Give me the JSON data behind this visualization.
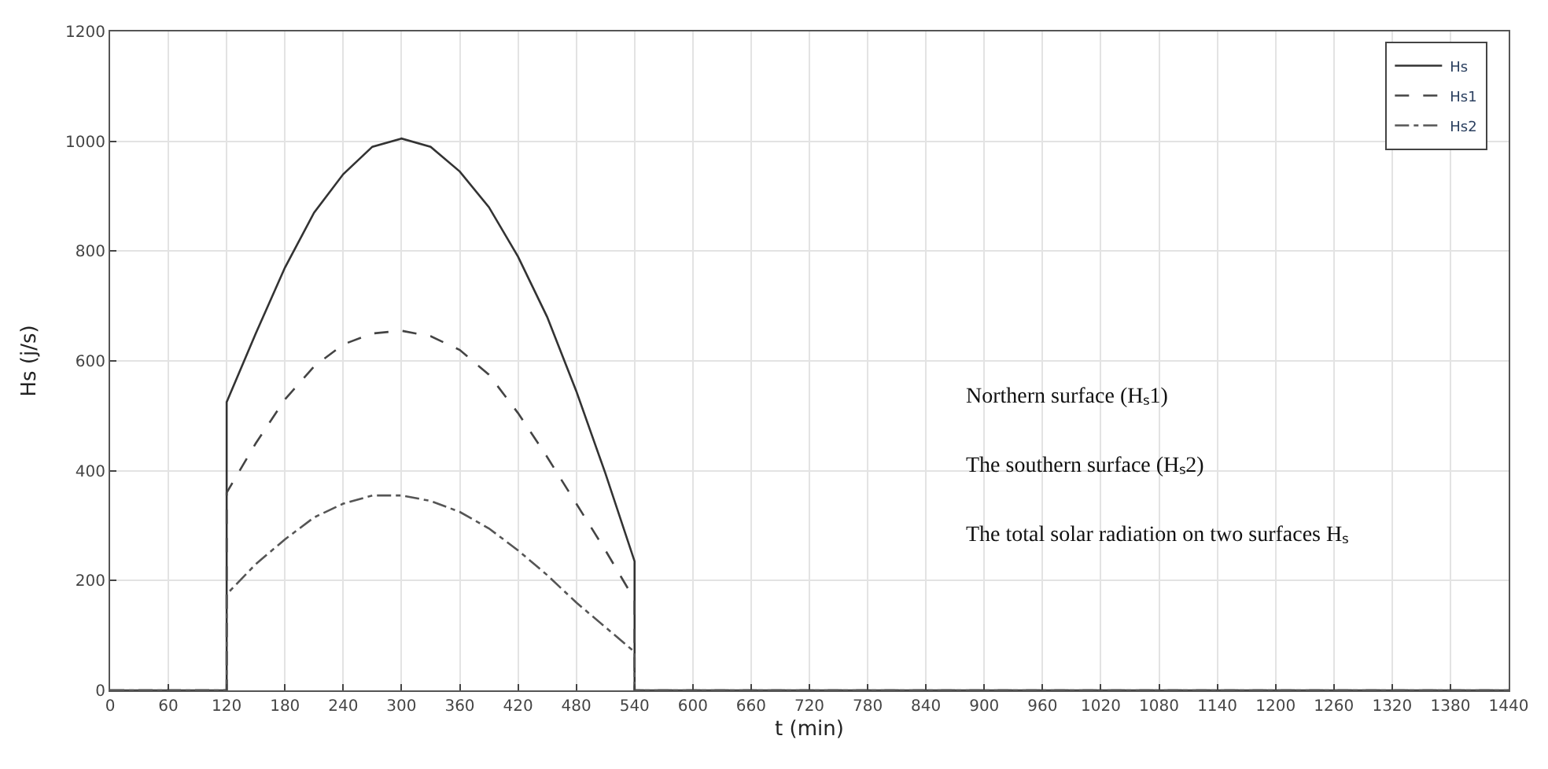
{
  "chart_data": {
    "type": "line",
    "xlabel": "t (min)",
    "ylabel": "Hs (j/s)",
    "x": [
      0,
      120,
      120,
      150,
      180,
      210,
      240,
      270,
      300,
      330,
      360,
      390,
      420,
      450,
      480,
      510,
      540,
      540,
      1440
    ],
    "series": [
      {
        "name": "Hs",
        "color": "#333333",
        "line_style": "solid",
        "values": [
          0,
          0,
          525,
          650,
          770,
          870,
          940,
          990,
          1005,
          990,
          945,
          880,
          790,
          680,
          545,
          395,
          235,
          0,
          0
        ]
      },
      {
        "name": "Hs1",
        "color": "#444444",
        "line_style": "dashed",
        "values": [
          0,
          0,
          360,
          450,
          530,
          590,
          630,
          650,
          655,
          645,
          620,
          575,
          505,
          425,
          340,
          255,
          165,
          0,
          0
        ]
      },
      {
        "name": "Hs2",
        "color": "#555555",
        "line_style": "dashdot",
        "values": [
          0,
          0,
          175,
          230,
          275,
          315,
          340,
          355,
          355,
          345,
          325,
          295,
          255,
          210,
          160,
          115,
          70,
          0,
          0
        ]
      }
    ],
    "xlim": [
      0,
      1440
    ],
    "xticks": [
      0,
      60,
      120,
      180,
      240,
      300,
      360,
      420,
      480,
      540,
      600,
      660,
      720,
      780,
      840,
      900,
      960,
      1020,
      1080,
      1140,
      1200,
      1260,
      1320,
      1380,
      1440
    ],
    "ylim": [
      0,
      1200
    ],
    "yticks": [
      0,
      200,
      400,
      600,
      800,
      1000,
      1200
    ],
    "grid": true,
    "legend": "top right",
    "marker": "none",
    "annotations": [
      "Northern surface (Hₛ1)",
      "The southern surface (Hₛ2)",
      "The total solar radiation on two surfaces Hₛ"
    ]
  }
}
